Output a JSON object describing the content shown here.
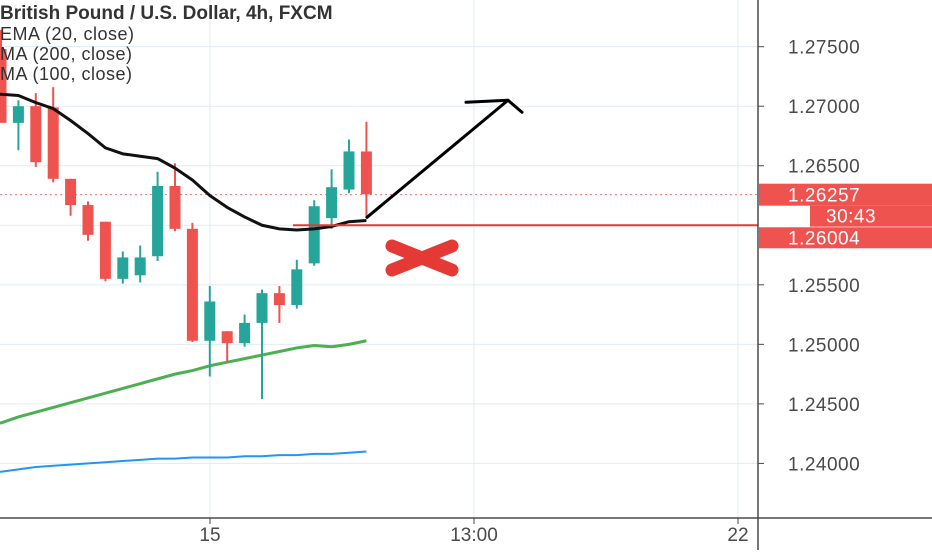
{
  "legend": {
    "title": "British Pound / U.S. Dollar, 4h, FXCM",
    "indicators": [
      "EMA (20, close)",
      "MA (200, close)",
      "MA (100, close)"
    ]
  },
  "colors": {
    "up": "#26a69a",
    "down": "#ef5350",
    "ema20": "#111111",
    "ma200": "#4caf50",
    "ma100": "#2196f3",
    "resistance": "#e53935",
    "grid": "#e1ecf2",
    "axis_text": "#4a4a4a",
    "price_label_bg": "#ef5350"
  },
  "chart_data": {
    "type": "candlestick",
    "title": "British Pound / U.S. Dollar, 4h, FXCM",
    "symbol": "GBPUSD",
    "timeframe": "4h",
    "source": "FXCM",
    "ylim": [
      1.2355,
      1.2785
    ],
    "y_ticks": [
      "1.27500",
      "1.27000",
      "1.26500",
      "1.25500",
      "1.25000",
      "1.24500",
      "1.24000"
    ],
    "x_ticks": [
      "15",
      "13:00",
      "22"
    ],
    "grid": true,
    "candles": [
      {
        "o": 1.2748,
        "h": 1.2764,
        "l": 1.2688,
        "c": 1.2686
      },
      {
        "o": 1.2686,
        "h": 1.2705,
        "l": 1.2663,
        "c": 1.27
      },
      {
        "o": 1.27,
        "h": 1.2711,
        "l": 1.2649,
        "c": 1.2653
      },
      {
        "o": 1.2699,
        "h": 1.2716,
        "l": 1.2636,
        "c": 1.2639
      },
      {
        "o": 1.2639,
        "h": 1.2639,
        "l": 1.2608,
        "c": 1.2617
      },
      {
        "o": 1.2617,
        "h": 1.262,
        "l": 1.2587,
        "c": 1.2592
      },
      {
        "o": 1.2603,
        "h": 1.2603,
        "l": 1.2553,
        "c": 1.2555
      },
      {
        "o": 1.2555,
        "h": 1.2578,
        "l": 1.2551,
        "c": 1.2573
      },
      {
        "o": 1.2558,
        "h": 1.2583,
        "l": 1.2552,
        "c": 1.2573
      },
      {
        "o": 1.2574,
        "h": 1.2645,
        "l": 1.257,
        "c": 1.2633
      },
      {
        "o": 1.2633,
        "h": 1.2652,
        "l": 1.2595,
        "c": 1.2597
      },
      {
        "o": 1.2597,
        "h": 1.2602,
        "l": 1.2502,
        "c": 1.2503
      },
      {
        "o": 1.2503,
        "h": 1.2549,
        "l": 1.2473,
        "c": 1.2536
      },
      {
        "o": 1.2511,
        "h": 1.2511,
        "l": 1.2485,
        "c": 1.2501
      },
      {
        "o": 1.2501,
        "h": 1.2525,
        "l": 1.2498,
        "c": 1.2518
      },
      {
        "o": 1.2518,
        "h": 1.2546,
        "l": 1.2454,
        "c": 1.2543
      },
      {
        "o": 1.2543,
        "h": 1.2549,
        "l": 1.2518,
        "c": 1.2533
      },
      {
        "o": 1.2533,
        "h": 1.2571,
        "l": 1.253,
        "c": 1.2563
      },
      {
        "o": 1.2568,
        "h": 1.2621,
        "l": 1.2566,
        "c": 1.2616
      },
      {
        "o": 1.2606,
        "h": 1.2647,
        "l": 1.2597,
        "c": 1.2632
      },
      {
        "o": 1.263,
        "h": 1.2672,
        "l": 1.2627,
        "c": 1.2662
      },
      {
        "o": 1.2662,
        "h": 1.2687,
        "l": 1.2606,
        "c": 1.2626
      }
    ],
    "series": [
      {
        "name": "EMA (20, close)",
        "values": [
          1.271,
          1.2709,
          1.2703,
          1.2698,
          1.2688,
          1.2677,
          1.2665,
          1.266,
          1.2658,
          1.2656,
          1.2648,
          1.2638,
          1.2625,
          1.2615,
          1.2607,
          1.26,
          1.2597,
          1.2596,
          1.2597,
          1.2599,
          1.2603,
          1.2604
        ]
      },
      {
        "name": "MA (200, close)",
        "values": [
          1.2434,
          1.2439,
          1.2443,
          1.2447,
          1.2451,
          1.2455,
          1.2459,
          1.2463,
          1.2467,
          1.2471,
          1.2475,
          1.2478,
          1.2482,
          1.2485,
          1.2488,
          1.2491,
          1.2494,
          1.2497,
          1.2499,
          1.2498,
          1.25,
          1.2503
        ]
      },
      {
        "name": "MA (100, close)",
        "values": [
          1.2393,
          1.2395,
          1.2397,
          1.2398,
          1.2399,
          1.24,
          1.2401,
          1.2402,
          1.2403,
          1.2404,
          1.2404,
          1.2405,
          1.2405,
          1.2405,
          1.2406,
          1.2406,
          1.2407,
          1.2407,
          1.2408,
          1.2408,
          1.2409,
          1.241
        ]
      }
    ],
    "resistance_level": 1.26,
    "current_price": {
      "value": 1.26257,
      "label": "1.26257"
    },
    "countdown": "30:43",
    "level_label": "1.26004",
    "projection": {
      "from_price": 1.2605,
      "to_price": 1.2705
    },
    "annotations": [
      "upward arrow projection",
      "red X mark below level"
    ]
  }
}
